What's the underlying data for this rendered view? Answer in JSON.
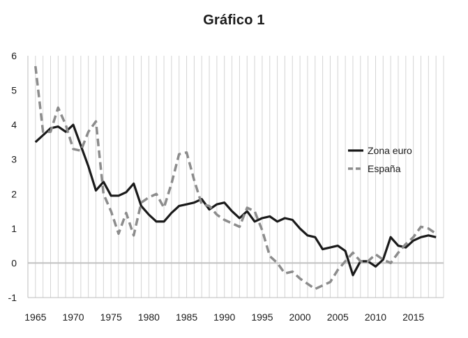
{
  "chart_data": {
    "type": "line",
    "title": "Gráfico 1",
    "xlabel": "",
    "ylabel": "",
    "xlim": [
      1964,
      2019
    ],
    "ylim": [
      -1,
      6
    ],
    "x_ticks": [
      1965,
      1970,
      1975,
      1980,
      1985,
      1990,
      1995,
      2000,
      2005,
      2010,
      2015
    ],
    "y_ticks": [
      -1,
      0,
      1,
      2,
      3,
      4,
      5,
      6
    ],
    "grid": "vertical",
    "legend_position": "right",
    "x": [
      1965,
      1966,
      1967,
      1968,
      1969,
      1970,
      1971,
      1972,
      1973,
      1974,
      1975,
      1976,
      1977,
      1978,
      1979,
      1980,
      1981,
      1982,
      1983,
      1984,
      1985,
      1986,
      1987,
      1988,
      1989,
      1990,
      1991,
      1992,
      1993,
      1994,
      1995,
      1996,
      1997,
      1998,
      1999,
      2000,
      2001,
      2002,
      2003,
      2004,
      2005,
      2006,
      2007,
      2008,
      2009,
      2010,
      2011,
      2012,
      2013,
      2014,
      2015,
      2016,
      2017,
      2018
    ],
    "series": [
      {
        "name": "Zona euro",
        "color": "#1a1a1a",
        "style": "solid",
        "values": [
          3.5,
          3.7,
          3.9,
          3.95,
          3.8,
          4.0,
          3.4,
          2.8,
          2.1,
          2.35,
          1.95,
          1.95,
          2.05,
          2.3,
          1.65,
          1.4,
          1.2,
          1.2,
          1.45,
          1.65,
          1.7,
          1.75,
          1.85,
          1.55,
          1.7,
          1.75,
          1.5,
          1.3,
          1.5,
          1.2,
          1.3,
          1.35,
          1.2,
          1.3,
          1.25,
          1.0,
          0.8,
          0.75,
          0.4,
          0.45,
          0.5,
          0.35,
          -0.35,
          0.05,
          0.05,
          -0.1,
          0.1,
          0.75,
          0.5,
          0.45,
          0.65,
          0.75,
          0.8,
          0.75
        ]
      },
      {
        "name": "España",
        "color": "#8c8c8c",
        "style": "dashed",
        "values": [
          5.7,
          3.8,
          3.8,
          4.5,
          4.0,
          3.3,
          3.25,
          3.8,
          4.1,
          2.0,
          1.5,
          0.85,
          1.45,
          0.8,
          1.75,
          1.9,
          2.0,
          1.6,
          2.3,
          3.15,
          3.2,
          2.4,
          1.7,
          1.65,
          1.4,
          1.25,
          1.15,
          1.05,
          1.6,
          1.5,
          0.95,
          0.2,
          0.0,
          -0.3,
          -0.25,
          -0.45,
          -0.6,
          -0.75,
          -0.65,
          -0.55,
          -0.2,
          0.05,
          0.3,
          0.05,
          0.05,
          0.25,
          0.1,
          0.0,
          0.3,
          0.55,
          0.75,
          1.05,
          1.0,
          0.85
        ]
      }
    ]
  }
}
